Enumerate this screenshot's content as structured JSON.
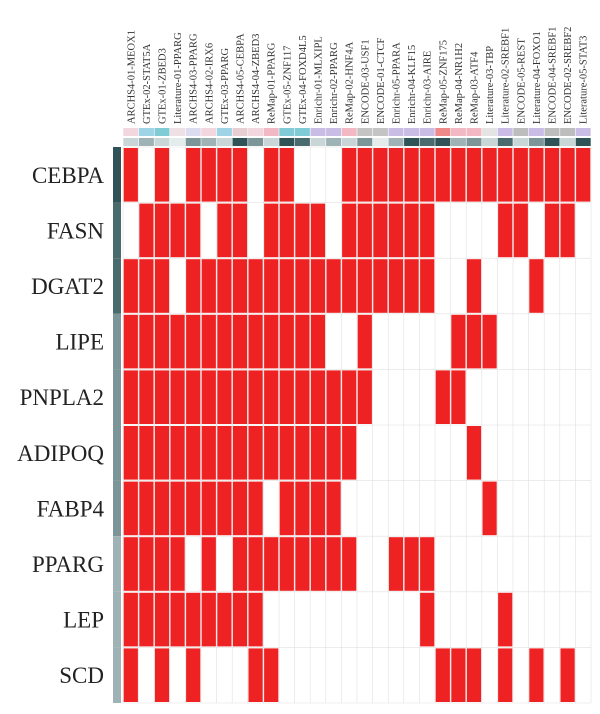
{
  "chart_data": {
    "type": "heatmap",
    "columns": [
      "ARCHS4-01-MEOX1",
      "GTEx-02-STAT5A",
      "GTEx-01-ZBED3",
      "Literature-01-PPARG",
      "ARCHS4-03-PPARG",
      "ARCHS4-02-IRX6",
      "GTEx-03-PPARG",
      "ARCHS4-05-CEBPA",
      "ARCHS4-04-ZBED3",
      "ReMap-01-PPARG",
      "GTEx-05-ZNF117",
      "GTEx-04-FOXD4L5",
      "Enrichr-01-MLXIPL",
      "Enrichr-02-PPARG",
      "ReMap-02-HNF4A",
      "ENCODE-03-USF1",
      "ENCODE-01-CTCF",
      "Enrichr-05-PPARA",
      "Enrichr-04-KLF15",
      "Enrichr-03-AIRE",
      "ReMap-05-ZNF175",
      "ReMap-04-NR1H2",
      "ReMap-03-ATF4",
      "Literature-03-TBP",
      "Literature-02-SREBF1",
      "ENCODE-05-REST",
      "Literature-04-FOXO1",
      "ENCODE-04-SREBF1",
      "ENCODE-02-SREBF2",
      "Literature-05-STAT3"
    ],
    "rows": [
      "CEBPA",
      "FASN",
      "DGAT2",
      "LIPE",
      "PNPLA2",
      "ADIPOQ",
      "FABP4",
      "PPARG",
      "LEP",
      "SCD"
    ],
    "matrix": [
      [
        1,
        0,
        1,
        0,
        1,
        1,
        1,
        1,
        0,
        1,
        1,
        0,
        0,
        0,
        1,
        1,
        1,
        1,
        1,
        1,
        1,
        1,
        1,
        1,
        1,
        1,
        1,
        1,
        1,
        1
      ],
      [
        0,
        1,
        1,
        1,
        1,
        0,
        1,
        1,
        0,
        1,
        1,
        1,
        1,
        0,
        1,
        1,
        1,
        1,
        1,
        1,
        0,
        0,
        0,
        0,
        1,
        1,
        0,
        1,
        1,
        0
      ],
      [
        1,
        1,
        1,
        0,
        1,
        1,
        1,
        1,
        1,
        1,
        1,
        1,
        1,
        1,
        1,
        1,
        1,
        1,
        1,
        1,
        0,
        0,
        1,
        0,
        0,
        0,
        1,
        0,
        0,
        0
      ],
      [
        1,
        1,
        1,
        1,
        1,
        1,
        1,
        1,
        1,
        1,
        1,
        1,
        1,
        0,
        0,
        1,
        0,
        0,
        0,
        0,
        0,
        1,
        1,
        1,
        0,
        0,
        0,
        0,
        0,
        0
      ],
      [
        1,
        1,
        1,
        1,
        1,
        1,
        1,
        1,
        1,
        1,
        1,
        1,
        1,
        1,
        1,
        1,
        0,
        0,
        0,
        0,
        1,
        1,
        0,
        0,
        0,
        0,
        0,
        0,
        0,
        0
      ],
      [
        1,
        1,
        1,
        1,
        1,
        1,
        1,
        1,
        1,
        1,
        1,
        1,
        1,
        1,
        1,
        0,
        0,
        0,
        0,
        0,
        0,
        0,
        1,
        0,
        0,
        0,
        0,
        0,
        0,
        0
      ],
      [
        1,
        1,
        1,
        1,
        1,
        1,
        1,
        1,
        1,
        0,
        1,
        1,
        1,
        1,
        0,
        0,
        0,
        0,
        0,
        0,
        0,
        0,
        0,
        1,
        0,
        0,
        0,
        0,
        0,
        0
      ],
      [
        1,
        1,
        1,
        1,
        0,
        1,
        0,
        1,
        1,
        1,
        1,
        1,
        1,
        1,
        1,
        0,
        0,
        1,
        1,
        1,
        0,
        0,
        0,
        0,
        0,
        0,
        0,
        0,
        0,
        0
      ],
      [
        1,
        1,
        1,
        1,
        1,
        1,
        1,
        1,
        1,
        0,
        0,
        0,
        0,
        0,
        0,
        0,
        0,
        0,
        0,
        1,
        0,
        0,
        0,
        0,
        1,
        0,
        0,
        0,
        0,
        0
      ],
      [
        1,
        0,
        1,
        0,
        1,
        0,
        0,
        0,
        1,
        1,
        0,
        0,
        0,
        0,
        0,
        0,
        0,
        0,
        0,
        0,
        1,
        1,
        1,
        0,
        1,
        0,
        1,
        0,
        1,
        0
      ]
    ],
    "colors": {
      "present": "#ee2222",
      "absent": "#ffffff",
      "grid": "#e0e0e0"
    },
    "column_annotation_top": [
      "#f3d7de",
      "#9ed4e6",
      "#80cbd6",
      "#eee0e5",
      "#dcdcf0",
      "#f3d7de",
      "#9ed4e6",
      "#e8cfd4",
      "#f3d7de",
      "#f2b8c4",
      "#80cbd6",
      "#80cbd6",
      "#c9bde6",
      "#c9bde6",
      "#f2b8c4",
      "#c4c4c4",
      "#c4c4c4",
      "#c9bde6",
      "#c9bde6",
      "#c9bde6",
      "#ee8a8a",
      "#f2b8c4",
      "#f2b8c4",
      "#e4e4e4",
      "#c9bde6",
      "#bdbdbd",
      "#c9bde6",
      "#bdbdbd",
      "#bdbdbd",
      "#c9bde6"
    ],
    "column_annotation_bottom": [
      "#c8d6d8",
      "#9fb3b6",
      "#c8d6d8",
      "#e4ecec",
      "#7b9598",
      "#9fb3b6",
      "#c8d6d8",
      "#2f5356",
      "#7b9598",
      "#c8d6d8",
      "#2f5356",
      "#4a6b6e",
      "#c8d6d8",
      "#9fb3b6",
      "#c8d6d8",
      "#7b9598",
      "#e4ecec",
      "#9fb3b6",
      "#2f5356",
      "#4a6b6e",
      "#2f5356",
      "#9fb3b6",
      "#7b9598",
      "#c8d6d8",
      "#4a6b6e",
      "#c8d6d8",
      "#7b9598",
      "#2f5356",
      "#c8d6d8",
      "#2f5356"
    ],
    "row_annotation": [
      "#2f5356",
      "#4a6b6e",
      "#4a6b6e",
      "#7b9598",
      "#7b9598",
      "#7b9598",
      "#7b9598",
      "#9fb3b6",
      "#9fb3b6",
      "#9fb3b6"
    ]
  }
}
